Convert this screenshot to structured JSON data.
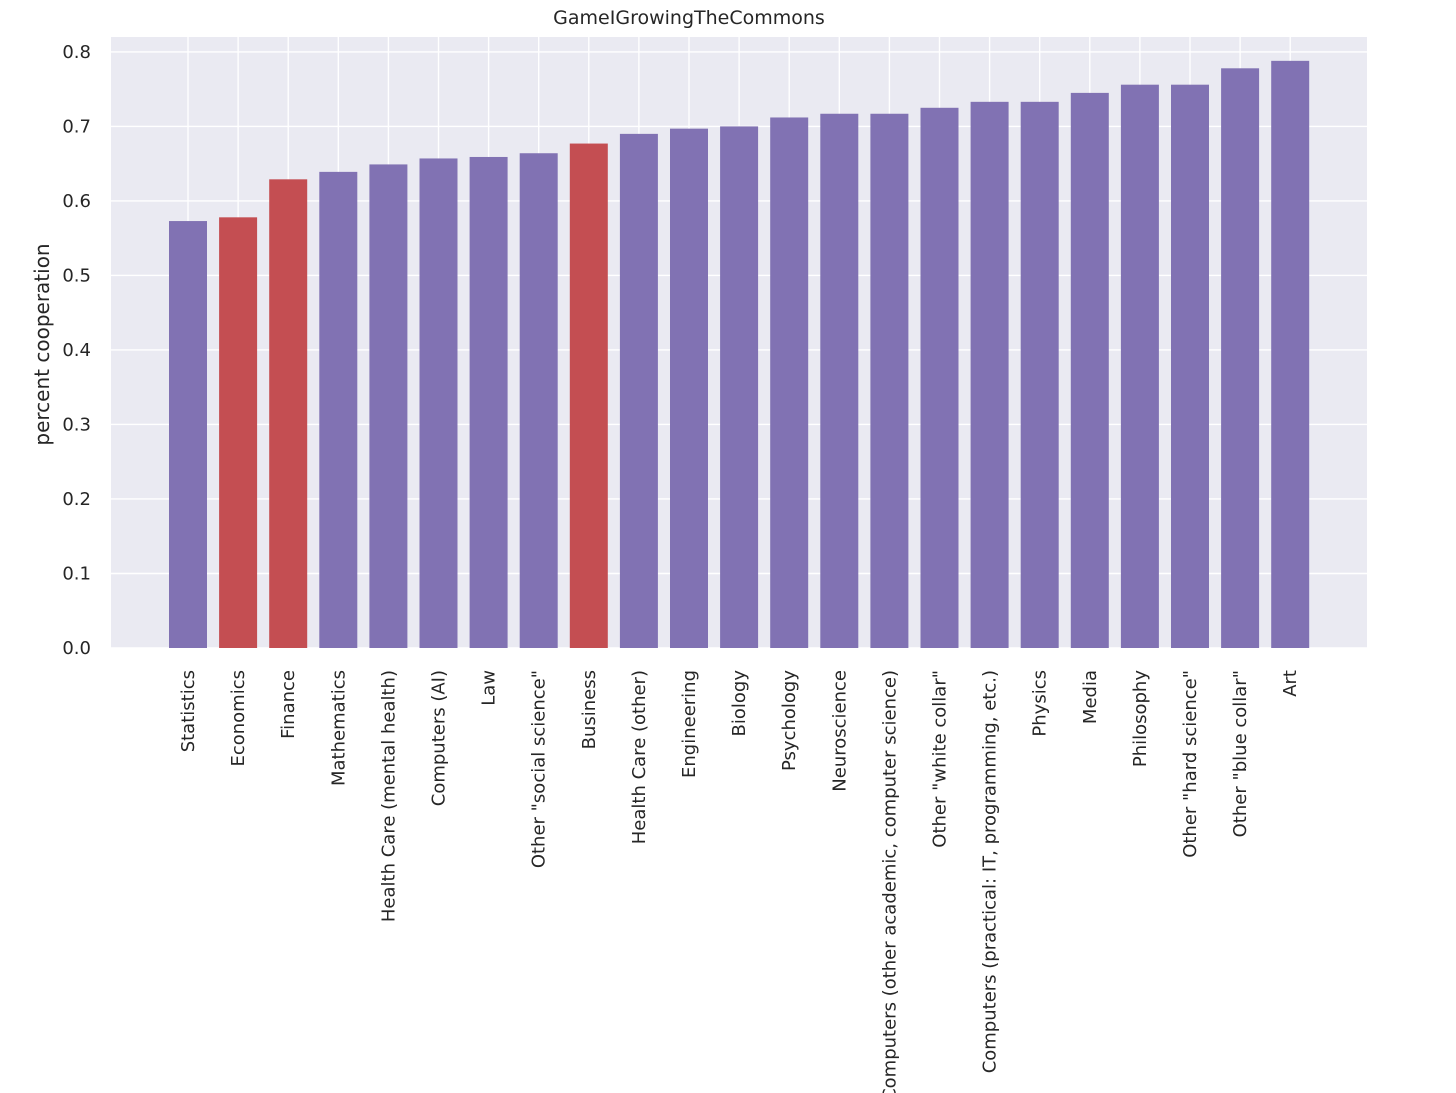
{
  "chart_data": {
    "type": "bar",
    "title": "GameIGrowingTheCommons",
    "xlabel": "",
    "ylabel": "percent cooperation",
    "ylim": [
      0,
      0.82
    ],
    "yticks": [
      "0.0",
      "0.1",
      "0.2",
      "0.3",
      "0.4",
      "0.5",
      "0.6",
      "0.7",
      "0.8"
    ],
    "grid": true,
    "categories": [
      "Statistics",
      "Economics",
      "Finance",
      "Mathematics",
      "Health Care (mental health)",
      "Computers (AI)",
      "Law",
      "Other \"social science\"",
      "Business",
      "Health Care (other)",
      "Engineering",
      "Biology",
      "Psychology",
      "Neuroscience",
      "Computers (other academic, computer science)",
      "Other \"white collar\"",
      "Computers (practical: IT, programming, etc.)",
      "Physics",
      "Media",
      "Philosophy",
      "Other \"hard science\"",
      "Other \"blue collar\"",
      "Art"
    ],
    "values": [
      0.573,
      0.578,
      0.629,
      0.639,
      0.649,
      0.657,
      0.659,
      0.664,
      0.677,
      0.69,
      0.697,
      0.7,
      0.712,
      0.717,
      0.717,
      0.725,
      0.733,
      0.733,
      0.745,
      0.756,
      0.756,
      0.778,
      0.788
    ],
    "highlighted": [
      "Economics",
      "Finance",
      "Business"
    ],
    "colors": {
      "default": "#8172b3",
      "highlight": "#c44e52",
      "background": "#eaeaf2",
      "grid": "#ffffff"
    }
  }
}
